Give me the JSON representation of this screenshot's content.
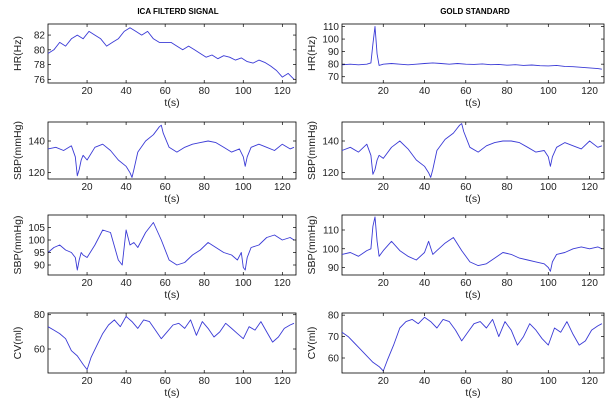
{
  "titles": [
    "ICA FILTERD SIGNAL",
    "GOLD STANDARD"
  ],
  "line_color": "#3b3bd6",
  "chart_data": [
    {
      "type": "line",
      "column": 0,
      "row": 0,
      "xlabel": "t(s)",
      "ylabel": "HR(Hz)",
      "xlim": [
        0,
        127
      ],
      "ylim": [
        75.5,
        83.5
      ],
      "xticks": [
        20,
        40,
        60,
        80,
        100,
        120
      ],
      "yticks": [
        76,
        78,
        80,
        82
      ],
      "x": [
        0,
        3,
        6,
        9,
        12,
        15,
        18,
        21,
        24,
        27,
        30,
        33,
        36,
        39,
        42,
        45,
        48,
        51,
        54,
        57,
        60,
        63,
        66,
        69,
        72,
        75,
        78,
        81,
        84,
        87,
        90,
        93,
        96,
        99,
        102,
        105,
        108,
        111,
        114,
        117,
        120,
        123,
        126
      ],
      "y": [
        79.5,
        80,
        81,
        80.5,
        81.5,
        82,
        81.5,
        82.5,
        82,
        81.5,
        80.5,
        81,
        81.5,
        82.5,
        83,
        82.5,
        82,
        82.5,
        81.5,
        81,
        81,
        81,
        80.5,
        80,
        80.5,
        80,
        79.5,
        79,
        79.3,
        78.8,
        79.2,
        79,
        78.6,
        78.9,
        78.4,
        78.2,
        78.6,
        78.3,
        77.8,
        77.2,
        76.3,
        76.8,
        76
      ]
    },
    {
      "type": "line",
      "column": 1,
      "row": 0,
      "xlabel": "t(s)",
      "ylabel": "HR(Hz)",
      "xlim": [
        0,
        127
      ],
      "ylim": [
        65,
        112
      ],
      "xticks": [
        20,
        40,
        60,
        80,
        100,
        120
      ],
      "yticks": [
        70,
        80,
        90,
        100,
        110
      ],
      "x": [
        0,
        4,
        8,
        12,
        14,
        15,
        16,
        17,
        18,
        20,
        24,
        28,
        32,
        36,
        40,
        44,
        48,
        52,
        56,
        60,
        64,
        68,
        72,
        76,
        80,
        84,
        88,
        92,
        96,
        100,
        104,
        108,
        112,
        116,
        120,
        124,
        126
      ],
      "y": [
        79.5,
        80,
        79.5,
        80,
        81,
        96,
        110,
        88,
        79,
        80,
        80.5,
        80,
        79.5,
        80,
        80.5,
        81,
        80.5,
        80,
        80.5,
        80,
        79.8,
        80.2,
        79.6,
        79.8,
        79.2,
        79.6,
        79,
        79.3,
        78.8,
        78.6,
        79,
        78.2,
        78,
        77.5,
        77,
        76.5,
        76
      ]
    },
    {
      "type": "line",
      "column": 0,
      "row": 1,
      "xlabel": "t(s)",
      "ylabel": "SBP(mmHg)",
      "xlim": [
        0,
        127
      ],
      "ylim": [
        116,
        152
      ],
      "xticks": [
        20,
        40,
        60,
        80,
        100,
        120
      ],
      "yticks": [
        120,
        140
      ],
      "x": [
        0,
        4,
        8,
        12,
        14,
        15,
        16,
        17,
        18,
        20,
        24,
        28,
        32,
        36,
        40,
        42,
        43,
        44,
        46,
        50,
        54,
        57,
        58,
        59,
        62,
        66,
        70,
        74,
        78,
        82,
        86,
        90,
        94,
        98,
        100,
        101,
        102,
        104,
        108,
        112,
        116,
        120,
        124,
        126
      ],
      "y": [
        135,
        136,
        134,
        137,
        130,
        118,
        122,
        128,
        131,
        128,
        136,
        138,
        134,
        128,
        124,
        120,
        117,
        122,
        133,
        140,
        144,
        149,
        150,
        145,
        136,
        133,
        136,
        138,
        139,
        140,
        139,
        136,
        133,
        135,
        130,
        124,
        130,
        136,
        138,
        136,
        134,
        138,
        135,
        136
      ]
    },
    {
      "type": "line",
      "column": 1,
      "row": 1,
      "xlabel": "t(s)",
      "ylabel": "SBP(mmHg)",
      "xlim": [
        0,
        127
      ],
      "ylim": [
        116,
        152
      ],
      "xticks": [
        20,
        40,
        60,
        80,
        100,
        120
      ],
      "yticks": [
        120,
        140
      ],
      "x": [
        0,
        4,
        8,
        12,
        14,
        15,
        16,
        17,
        18,
        20,
        24,
        28,
        32,
        36,
        40,
        42,
        43,
        44,
        46,
        50,
        54,
        57,
        58,
        59,
        62,
        66,
        70,
        74,
        78,
        82,
        86,
        90,
        94,
        98,
        100,
        101,
        102,
        104,
        108,
        112,
        116,
        120,
        124,
        126
      ],
      "y": [
        134,
        136,
        133,
        138,
        131,
        119,
        122,
        128,
        131,
        129,
        136,
        140,
        135,
        128,
        124,
        120,
        117,
        122,
        134,
        141,
        145,
        150,
        151,
        146,
        136,
        133,
        137,
        139,
        140,
        140,
        139,
        136,
        133,
        134,
        130,
        124,
        130,
        136,
        139,
        137,
        135,
        140,
        136,
        137
      ]
    },
    {
      "type": "line",
      "column": 0,
      "row": 2,
      "xlabel": "t(s)",
      "ylabel": "SBP(mmHg)",
      "xlim": [
        0,
        127
      ],
      "ylim": [
        86,
        110
      ],
      "xticks": [
        20,
        40,
        60,
        80,
        100,
        120
      ],
      "yticks": [
        90,
        95,
        100,
        105
      ],
      "x": [
        0,
        3,
        6,
        9,
        12,
        14,
        15,
        16,
        17,
        18,
        20,
        24,
        28,
        32,
        36,
        38,
        40,
        42,
        44,
        46,
        50,
        54,
        58,
        62,
        66,
        70,
        74,
        78,
        82,
        86,
        90,
        94,
        97,
        99,
        100,
        101,
        102,
        104,
        108,
        112,
        116,
        120,
        124,
        126
      ],
      "y": [
        95,
        97,
        98,
        96,
        95,
        93,
        88,
        92,
        95,
        94,
        93,
        98,
        104,
        103,
        92,
        90,
        104,
        98,
        99,
        97,
        103,
        107,
        100,
        92,
        90,
        91,
        94,
        96,
        99,
        97,
        95,
        94,
        92,
        95,
        89,
        88,
        93,
        97,
        98,
        101,
        102,
        100,
        101,
        100
      ]
    },
    {
      "type": "line",
      "column": 1,
      "row": 2,
      "xlabel": "t(s)",
      "ylabel": "SBP(mmHg)",
      "xlim": [
        0,
        127
      ],
      "ylim": [
        86,
        118
      ],
      "xticks": [
        20,
        40,
        60,
        80,
        100,
        120
      ],
      "yticks": [
        90,
        100,
        110
      ],
      "x": [
        0,
        4,
        8,
        12,
        14,
        15,
        16,
        17,
        18,
        20,
        24,
        28,
        32,
        36,
        40,
        42,
        44,
        46,
        50,
        54,
        58,
        62,
        66,
        70,
        74,
        78,
        82,
        86,
        90,
        94,
        98,
        100,
        101,
        102,
        104,
        108,
        112,
        116,
        120,
        124,
        126
      ],
      "y": [
        97,
        98,
        96,
        99,
        100,
        112,
        117,
        104,
        96,
        99,
        104,
        99,
        96,
        94,
        98,
        104,
        97,
        99,
        103,
        106,
        99,
        93,
        91,
        92,
        95,
        98,
        97,
        95,
        94,
        93,
        92,
        90,
        88,
        93,
        97,
        98,
        100,
        101,
        100,
        101,
        100
      ]
    },
    {
      "type": "line",
      "column": 0,
      "row": 3,
      "xlabel": "t(s)",
      "ylabel": "CV(ml)",
      "xlim": [
        0,
        127
      ],
      "ylim": [
        46,
        81
      ],
      "xticks": [
        20,
        40,
        60,
        80,
        100,
        120
      ],
      "yticks": [
        60,
        80
      ],
      "x": [
        0,
        3,
        6,
        9,
        12,
        15,
        18,
        20,
        22,
        25,
        28,
        31,
        34,
        37,
        40,
        43,
        46,
        49,
        52,
        55,
        58,
        61,
        64,
        67,
        70,
        73,
        76,
        79,
        82,
        85,
        88,
        91,
        94,
        97,
        100,
        103,
        106,
        109,
        112,
        115,
        118,
        121,
        124,
        126
      ],
      "y": [
        73,
        71,
        69,
        66,
        59,
        56,
        51,
        48,
        55,
        62,
        69,
        74,
        77,
        73,
        79,
        76,
        72,
        77,
        76,
        71,
        66,
        70,
        74,
        75,
        72,
        77,
        68,
        76,
        72,
        67,
        70,
        75,
        72,
        69,
        66,
        73,
        71,
        76,
        70,
        64,
        67,
        72,
        74,
        75
      ]
    },
    {
      "type": "line",
      "column": 1,
      "row": 3,
      "xlabel": "t(s)",
      "ylabel": "CV(ml)",
      "xlim": [
        0,
        127
      ],
      "ylim": [
        53,
        81
      ],
      "xticks": [
        20,
        40,
        60,
        80,
        100,
        120
      ],
      "yticks": [
        60,
        70,
        80
      ],
      "x": [
        0,
        3,
        6,
        9,
        12,
        15,
        18,
        20,
        22,
        25,
        28,
        31,
        34,
        37,
        40,
        43,
        46,
        49,
        52,
        55,
        58,
        61,
        64,
        67,
        70,
        73,
        76,
        79,
        82,
        85,
        88,
        91,
        94,
        97,
        100,
        103,
        106,
        109,
        112,
        115,
        118,
        121,
        124,
        126
      ],
      "y": [
        72,
        70,
        67,
        64,
        61,
        58,
        56,
        54,
        59,
        66,
        74,
        77,
        78,
        76,
        79,
        77,
        74,
        78,
        77,
        73,
        68,
        72,
        76,
        77,
        74,
        78,
        70,
        77,
        73,
        66,
        70,
        76,
        73,
        69,
        66,
        74,
        72,
        77,
        71,
        66,
        68,
        73,
        75,
        76
      ]
    }
  ]
}
